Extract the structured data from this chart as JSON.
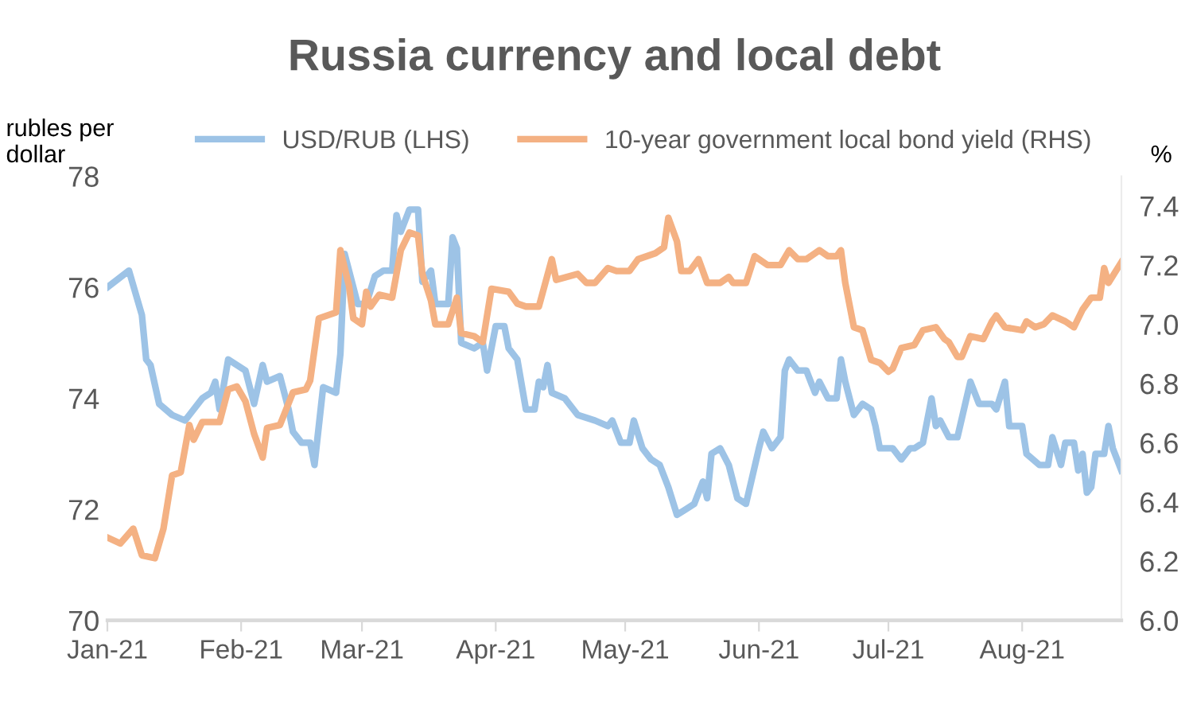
{
  "chart_data": {
    "type": "line",
    "title": "Russia currency and local debt",
    "ylabel": "rubles per\ndollar",
    "y2label": "%",
    "xlim": [
      "2021-01-01",
      "2021-08-24"
    ],
    "xticks": [
      {
        "value": "2021-01-01",
        "label": "Jan-21"
      },
      {
        "value": "2021-02-01",
        "label": "Feb-21"
      },
      {
        "value": "2021-03-01",
        "label": "Mar-21"
      },
      {
        "value": "2021-04-01",
        "label": "Apr-21"
      },
      {
        "value": "2021-05-01",
        "label": "May-21"
      },
      {
        "value": "2021-06-01",
        "label": "Jun-21"
      },
      {
        "value": "2021-07-01",
        "label": "Jul-21"
      },
      {
        "value": "2021-08-01",
        "label": "Aug-21"
      }
    ],
    "ylim": [
      70,
      78
    ],
    "yticks": [
      70,
      72,
      74,
      76,
      78
    ],
    "y2lim": [
      6.0,
      7.5
    ],
    "y2ticks": [
      {
        "value": 6.0,
        "label": "6.0"
      },
      6.2,
      6.4,
      6.6,
      6.8,
      {
        "value": 7.0,
        "label": "7.0"
      },
      7.2,
      7.4
    ],
    "grid": false,
    "legend": "top",
    "marker": "none",
    "line_style": "solid",
    "series": [
      {
        "name": "USD/RUB (LHS)",
        "color": "#9dc3e6",
        "x": [
          "2021-01-01",
          "2021-01-06",
          "2021-01-09",
          "2021-01-10",
          "2021-01-11",
          "2021-01-13",
          "2021-01-16",
          "2021-01-19",
          "2021-01-23",
          "2021-01-25",
          "2021-01-26",
          "2021-01-27",
          "2021-01-29",
          "2021-01-31",
          "2021-02-02",
          "2021-02-04",
          "2021-02-06",
          "2021-02-07",
          "2021-02-10",
          "2021-02-12",
          "2021-02-13",
          "2021-02-15",
          "2021-02-17",
          "2021-02-18",
          "2021-02-20",
          "2021-02-23",
          "2021-02-24",
          "2021-02-25",
          "2021-02-27",
          "2021-02-28",
          "2021-03-02",
          "2021-03-04",
          "2021-03-06",
          "2021-03-08",
          "2021-03-09",
          "2021-03-10",
          "2021-03-12",
          "2021-03-14",
          "2021-03-15",
          "2021-03-17",
          "2021-03-18",
          "2021-03-21",
          "2021-03-22",
          "2021-03-23",
          "2021-03-24",
          "2021-03-27",
          "2021-03-29",
          "2021-03-30",
          "2021-04-01",
          "2021-04-03",
          "2021-04-04",
          "2021-04-06",
          "2021-04-08",
          "2021-04-10",
          "2021-04-11",
          "2021-04-12",
          "2021-04-13",
          "2021-04-14",
          "2021-04-17",
          "2021-04-20",
          "2021-04-24",
          "2021-04-27",
          "2021-04-28",
          "2021-04-30",
          "2021-05-02",
          "2021-05-03",
          "2021-05-05",
          "2021-05-07",
          "2021-05-09",
          "2021-05-11",
          "2021-05-13",
          "2021-05-15",
          "2021-05-17",
          "2021-05-19",
          "2021-05-20",
          "2021-05-21",
          "2021-05-23",
          "2021-05-25",
          "2021-05-27",
          "2021-05-29",
          "2021-06-01",
          "2021-06-02",
          "2021-06-04",
          "2021-06-06",
          "2021-06-07",
          "2021-06-08",
          "2021-06-10",
          "2021-06-12",
          "2021-06-14",
          "2021-06-15",
          "2021-06-17",
          "2021-06-19",
          "2021-06-20",
          "2021-06-21",
          "2021-06-23",
          "2021-06-25",
          "2021-06-27",
          "2021-06-28",
          "2021-06-29",
          "2021-07-02",
          "2021-07-04",
          "2021-07-06",
          "2021-07-07",
          "2021-07-09",
          "2021-07-11",
          "2021-07-12",
          "2021-07-13",
          "2021-07-15",
          "2021-07-17",
          "2021-07-20",
          "2021-07-22",
          "2021-07-25",
          "2021-07-26",
          "2021-07-28",
          "2021-07-29",
          "2021-08-01",
          "2021-08-02",
          "2021-08-05",
          "2021-08-07",
          "2021-08-08",
          "2021-08-10",
          "2021-08-11",
          "2021-08-13",
          "2021-08-14",
          "2021-08-15",
          "2021-08-16",
          "2021-08-17",
          "2021-08-18",
          "2021-08-20",
          "2021-08-21",
          "2021-08-22",
          "2021-08-24"
        ],
        "values": [
          76.0,
          76.3,
          75.5,
          74.7,
          74.6,
          73.9,
          73.7,
          73.6,
          74.0,
          74.1,
          74.3,
          73.8,
          74.7,
          74.6,
          74.5,
          73.9,
          74.6,
          74.3,
          74.4,
          73.8,
          73.4,
          73.2,
          73.2,
          72.8,
          74.2,
          74.1,
          74.8,
          76.6,
          76.0,
          75.7,
          75.7,
          76.2,
          76.3,
          76.3,
          77.3,
          77.0,
          77.4,
          77.4,
          76.1,
          76.3,
          75.7,
          75.7,
          76.9,
          76.7,
          75.0,
          74.9,
          75.0,
          74.5,
          75.3,
          75.3,
          74.9,
          74.7,
          73.8,
          73.8,
          74.3,
          74.2,
          74.6,
          74.1,
          74.0,
          73.7,
          73.6,
          73.5,
          73.6,
          73.2,
          73.2,
          73.6,
          73.1,
          72.9,
          72.8,
          72.4,
          71.9,
          72.0,
          72.1,
          72.5,
          72.2,
          73.0,
          73.1,
          72.8,
          72.2,
          72.1,
          73.1,
          73.4,
          73.1,
          73.3,
          74.5,
          74.7,
          74.5,
          74.5,
          74.1,
          74.3,
          74.0,
          74.0,
          74.7,
          74.3,
          73.7,
          73.9,
          73.8,
          73.5,
          73.1,
          73.1,
          72.9,
          73.1,
          73.1,
          73.2,
          74.0,
          73.5,
          73.6,
          73.3,
          73.3,
          74.3,
          73.9,
          73.9,
          73.8,
          74.3,
          73.5,
          73.5,
          73.0,
          72.8,
          72.8,
          73.3,
          72.8,
          73.2,
          73.2,
          72.7,
          73.0,
          72.3,
          72.4,
          73.0,
          73.0,
          73.5,
          73.1,
          72.7
        ]
      },
      {
        "name": "10-year government local bond yield (RHS)",
        "color": "#f4b183",
        "axis": "y2",
        "x": [
          "2021-01-01",
          "2021-01-04",
          "2021-01-07",
          "2021-01-09",
          "2021-01-12",
          "2021-01-14",
          "2021-01-16",
          "2021-01-18",
          "2021-01-20",
          "2021-01-21",
          "2021-01-23",
          "2021-01-27",
          "2021-01-29",
          "2021-01-31",
          "2021-02-02",
          "2021-02-04",
          "2021-02-06",
          "2021-02-07",
          "2021-02-10",
          "2021-02-13",
          "2021-02-16",
          "2021-02-17",
          "2021-02-19",
          "2021-02-21",
          "2021-02-23",
          "2021-02-24",
          "2021-02-26",
          "2021-02-27",
          "2021-03-01",
          "2021-03-02",
          "2021-03-03",
          "2021-03-05",
          "2021-03-08",
          "2021-03-10",
          "2021-03-12",
          "2021-03-14",
          "2021-03-15",
          "2021-03-17",
          "2021-03-18",
          "2021-03-21",
          "2021-03-23",
          "2021-03-24",
          "2021-03-27",
          "2021-03-29",
          "2021-03-31",
          "2021-04-04",
          "2021-04-06",
          "2021-04-08",
          "2021-04-11",
          "2021-04-14",
          "2021-04-15",
          "2021-04-20",
          "2021-04-22",
          "2021-04-24",
          "2021-04-27",
          "2021-04-29",
          "2021-05-02",
          "2021-05-04",
          "2021-05-08",
          "2021-05-10",
          "2021-05-11",
          "2021-05-13",
          "2021-05-14",
          "2021-05-16",
          "2021-05-18",
          "2021-05-20",
          "2021-05-23",
          "2021-05-25",
          "2021-05-26",
          "2021-05-29",
          "2021-05-31",
          "2021-06-03",
          "2021-06-06",
          "2021-06-08",
          "2021-06-10",
          "2021-06-12",
          "2021-06-15",
          "2021-06-17",
          "2021-06-19",
          "2021-06-20",
          "2021-06-21",
          "2021-06-23",
          "2021-06-25",
          "2021-06-27",
          "2021-06-29",
          "2021-07-01",
          "2021-07-02",
          "2021-07-04",
          "2021-07-07",
          "2021-07-09",
          "2021-07-12",
          "2021-07-14",
          "2021-07-15",
          "2021-07-17",
          "2021-07-18",
          "2021-07-20",
          "2021-07-23",
          "2021-07-25",
          "2021-07-26",
          "2021-07-28",
          "2021-08-01",
          "2021-08-02",
          "2021-08-04",
          "2021-08-06",
          "2021-08-08",
          "2021-08-11",
          "2021-08-13",
          "2021-08-15",
          "2021-08-17",
          "2021-08-19",
          "2021-08-20",
          "2021-08-21",
          "2021-08-24"
        ],
        "values": [
          6.28,
          6.26,
          6.31,
          6.22,
          6.21,
          6.31,
          6.49,
          6.5,
          6.66,
          6.61,
          6.67,
          6.67,
          6.78,
          6.79,
          6.74,
          6.63,
          6.55,
          6.65,
          6.66,
          6.77,
          6.78,
          6.81,
          7.02,
          7.03,
          7.04,
          7.25,
          7.13,
          7.02,
          7.0,
          7.11,
          7.06,
          7.1,
          7.09,
          7.25,
          7.31,
          7.3,
          7.17,
          7.08,
          7.0,
          7.0,
          7.09,
          6.97,
          6.96,
          6.94,
          7.12,
          7.11,
          7.07,
          7.06,
          7.06,
          7.22,
          7.15,
          7.17,
          7.14,
          7.14,
          7.19,
          7.18,
          7.18,
          7.22,
          7.24,
          7.26,
          7.36,
          7.28,
          7.18,
          7.18,
          7.22,
          7.14,
          7.14,
          7.16,
          7.14,
          7.14,
          7.23,
          7.2,
          7.2,
          7.25,
          7.22,
          7.22,
          7.25,
          7.23,
          7.23,
          7.25,
          7.14,
          6.99,
          6.98,
          6.88,
          6.87,
          6.84,
          6.85,
          6.92,
          6.93,
          6.98,
          6.99,
          6.95,
          6.94,
          6.89,
          6.89,
          6.96,
          6.95,
          7.01,
          7.03,
          6.99,
          6.98,
          7.01,
          6.99,
          7.0,
          7.03,
          7.01,
          6.99,
          7.05,
          7.09,
          7.09,
          7.19,
          7.14,
          7.21
        ]
      }
    ]
  }
}
